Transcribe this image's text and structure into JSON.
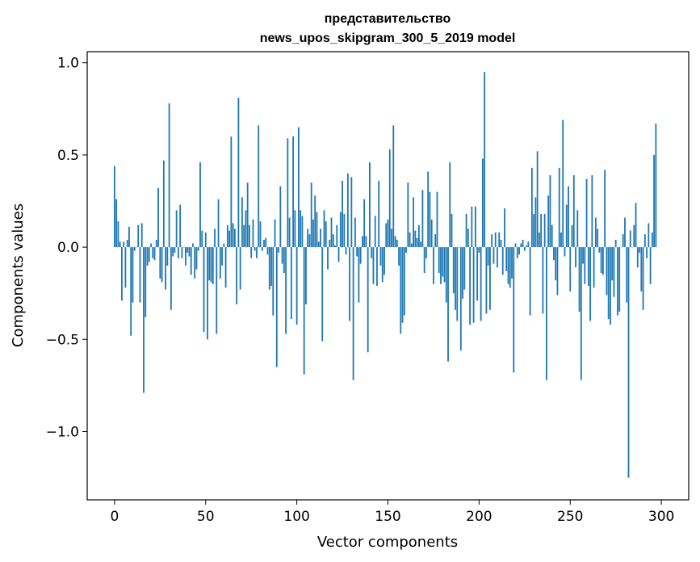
{
  "chart_data": {
    "type": "bar",
    "title_line1": "представительство",
    "title_line2": "news_upos_skipgram_300_5_2019 model",
    "xlabel": "Vector components",
    "ylabel": "Components values",
    "xlim": [
      -15,
      315
    ],
    "ylim": [
      -1.37,
      1.06
    ],
    "xticks": [
      0,
      50,
      100,
      150,
      200,
      250,
      300
    ],
    "xtick_labels": [
      "0",
      "50",
      "100",
      "150",
      "200",
      "250",
      "300"
    ],
    "yticks": [
      -1.0,
      -0.5,
      0.0,
      0.5,
      1.0
    ],
    "ytick_labels": [
      "−1.0",
      "−0.5",
      "0.0",
      "0.5",
      "1.0"
    ],
    "bar_color": "#1f77b4",
    "grid": false,
    "values": [
      0.44,
      0.26,
      0.14,
      0.03,
      -0.29,
      0.03,
      -0.22,
      0.04,
      0.11,
      -0.48,
      -0.3,
      -0.02,
      0.0,
      0.12,
      -0.3,
      0.13,
      -0.79,
      -0.38,
      -0.1,
      -0.08,
      0.02,
      -0.06,
      -0.07,
      0.04,
      0.32,
      -0.17,
      -0.19,
      0.47,
      -0.23,
      -0.1,
      0.78,
      -0.34,
      -0.05,
      -0.03,
      0.2,
      -0.06,
      0.23,
      -0.06,
      0.0,
      -0.1,
      -0.03,
      -0.05,
      -0.15,
      0.02,
      -0.17,
      -0.12,
      -0.02,
      0.46,
      0.09,
      -0.46,
      0.08,
      -0.5,
      -0.18,
      -0.19,
      -0.2,
      0.1,
      -0.47,
      0.26,
      -0.17,
      -0.1,
      0.02,
      -0.22,
      0.12,
      0.09,
      0.6,
      0.13,
      0.1,
      -0.31,
      0.81,
      -0.23,
      0.27,
      0.12,
      0.2,
      0.35,
      0.12,
      -0.06,
      0.15,
      -0.02,
      -0.06,
      0.66,
      0.14,
      -0.02,
      0.04,
      0.05,
      -0.04,
      -0.23,
      -0.21,
      -0.37,
      0.15,
      -0.65,
      -0.03,
      0.33,
      -0.09,
      -0.14,
      -0.47,
      0.59,
      0.16,
      -0.39,
      0.6,
      0.2,
      -0.42,
      0.65,
      0.2,
      0.17,
      -0.69,
      -0.31,
      0.1,
      0.07,
      0.35,
      0.15,
      0.28,
      0.19,
      0.03,
      0.1,
      -0.51,
      0.2,
      0.14,
      -0.12,
      0.04,
      0.16,
      0.07,
      0.01,
      0.12,
      -0.08,
      0.19,
      0.36,
      0.18,
      -0.04,
      0.4,
      -0.4,
      0.38,
      -0.72,
      0.16,
      -0.05,
      -0.3,
      -0.09,
      0.06,
      0.26,
      0.06,
      -0.57,
      0.46,
      -0.06,
      -0.2,
      0.17,
      -0.21,
      0.36,
      -0.1,
      -0.19,
      -0.15,
      0.13,
      0.15,
      0.53,
      0.1,
      0.66,
      0.06,
      0.04,
      -0.1,
      -0.47,
      -0.41,
      -0.37,
      -0.03,
      0.35,
      0.08,
      0.02,
      0.27,
      0.09,
      0.05,
      0.12,
      0.03,
      0.31,
      -0.14,
      -0.06,
      0.41,
      0.3,
      0.15,
      -0.2,
      0.07,
      0.3,
      -0.14,
      -0.2,
      -0.16,
      -0.19,
      -0.3,
      -0.62,
      0.46,
      0.18,
      -0.25,
      -0.34,
      -0.4,
      0.0,
      -0.56,
      -0.28,
      -0.23,
      0.18,
      0.1,
      -0.42,
      0.22,
      -0.41,
      0.22,
      -0.29,
      -0.03,
      -0.4,
      0.48,
      0.95,
      -0.36,
      -0.1,
      -0.34,
      0.07,
      -0.09,
      0.08,
      -0.11,
      0.08,
      0.04,
      -0.15,
      0.21,
      -0.13,
      -0.2,
      -0.22,
      -0.17,
      -0.68,
      0.02,
      -0.06,
      -0.04,
      0.02,
      0.04,
      -0.02,
      0.01,
      0.03,
      -0.37,
      0.43,
      0.18,
      0.27,
      0.52,
      0.08,
      0.18,
      -0.36,
      0.18,
      -0.72,
      0.28,
      0.39,
      0.12,
      -0.07,
      -0.18,
      -0.26,
      0.43,
      0.08,
      0.69,
      -0.05,
      0.23,
      0.33,
      -0.24,
      0.12,
      0.39,
      -0.11,
      0.2,
      -0.35,
      -0.72,
      -0.09,
      -0.2,
      0.37,
      -0.21,
      -0.4,
      0.39,
      -0.22,
      0.16,
      0.1,
      -0.03,
      -0.14,
      -0.15,
      0.42,
      -0.26,
      -0.39,
      -0.42,
      -0.18,
      -0.27,
      0.04,
      -0.37,
      -0.35,
      0.0,
      0.07,
      0.16,
      -0.3,
      -1.25,
      0.09,
      0.0,
      0.12,
      0.24,
      -0.11,
      -0.03,
      -0.24,
      -0.34,
      0.07,
      -0.06,
      0.13,
      -0.2,
      0.08,
      0.5,
      0.67
    ]
  }
}
